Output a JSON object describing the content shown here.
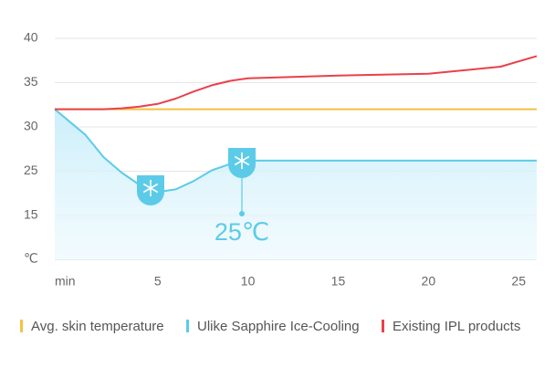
{
  "chart_data": {
    "type": "line",
    "ylabel": "℃",
    "xlabel": "min",
    "annotation": "25℃",
    "x": [
      -0.7,
      1,
      2,
      3,
      4,
      5,
      6,
      7,
      8,
      9,
      10,
      15,
      20,
      24,
      26
    ],
    "xlim": [
      -0.7,
      26
    ],
    "xticks": [
      5,
      10,
      15,
      20,
      25
    ],
    "yticks": [
      40,
      35,
      30,
      25,
      15
    ],
    "grid": true,
    "series": [
      {
        "name": "Avg. skin temperature",
        "color": "#f4c143",
        "values": [
          32,
          32,
          32,
          32,
          32,
          32,
          32,
          32,
          32,
          32,
          32,
          32,
          32,
          32,
          32
        ]
      },
      {
        "name": "Ulike Sapphire Ice-Cooling",
        "color": "#5ccbe8",
        "values": [
          32,
          29.1,
          26.6,
          24.7,
          21.9,
          20.3,
          20.9,
          22.8,
          25.1,
          25.8,
          26.2,
          26.2,
          26.2,
          26.2,
          26.2
        ]
      },
      {
        "name": "Existing IPL products",
        "color": "#e8414a",
        "values": [
          32,
          32,
          32,
          32.1,
          32.3,
          32.6,
          33.2,
          34,
          34.7,
          35.2,
          35.5,
          35.8,
          36,
          36.8,
          38
        ]
      }
    ]
  }
}
